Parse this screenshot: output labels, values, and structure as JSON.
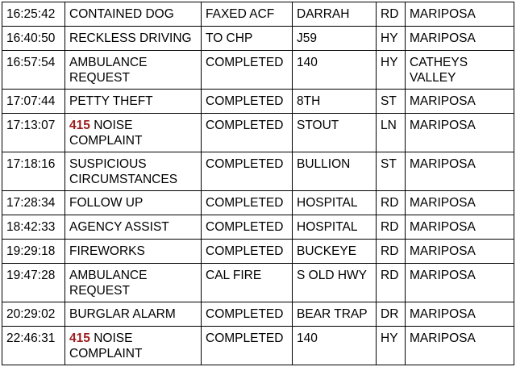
{
  "table": {
    "rows": [
      {
        "time": "16:25:42",
        "incident": "CONTAINED DOG",
        "disposition": "FAXED ACF",
        "street": "DARRAH",
        "suffix": "RD",
        "city": "MARIPOSA"
      },
      {
        "time": "16:40:50",
        "incident": "RECKLESS DRIVING",
        "disposition": "TO CHP",
        "street": "J59",
        "suffix": "HY",
        "city": "MARIPOSA"
      },
      {
        "time": "16:57:54",
        "incident": "AMBULANCE REQUEST",
        "disposition": "COMPLETED",
        "street": "140",
        "suffix": "HY",
        "city": "CATHEYS VALLEY"
      },
      {
        "time": "17:07:44",
        "incident": "PETTY THEFT",
        "disposition": "COMPLETED",
        "street": "8TH",
        "suffix": "ST",
        "city": "MARIPOSA"
      },
      {
        "time": "17:13:07",
        "code": "415",
        "incident": "NOISE COMPLAINT",
        "disposition": "COMPLETED",
        "street": "STOUT",
        "suffix": "LN",
        "city": "MARIPOSA"
      },
      {
        "time": "17:18:16",
        "incident": "SUSPICIOUS CIRCUMSTANCES",
        "disposition": "COMPLETED",
        "street": "BULLION",
        "suffix": "ST",
        "city": "MARIPOSA"
      },
      {
        "time": "17:28:34",
        "incident": "FOLLOW UP",
        "disposition": "COMPLETED",
        "street": "HOSPITAL",
        "suffix": "RD",
        "city": "MARIPOSA"
      },
      {
        "time": "18:42:33",
        "incident": "AGENCY ASSIST",
        "disposition": "COMPLETED",
        "street": "HOSPITAL",
        "suffix": "RD",
        "city": "MARIPOSA"
      },
      {
        "time": "19:29:18",
        "incident": "FIREWORKS",
        "disposition": "COMPLETED",
        "street": "BUCKEYE",
        "suffix": "RD",
        "city": "MARIPOSA"
      },
      {
        "time": "19:47:28",
        "incident": "AMBULANCE REQUEST",
        "disposition": "CAL FIRE",
        "street": "S OLD HWY",
        "suffix": "RD",
        "city": "MARIPOSA"
      },
      {
        "time": "20:29:02",
        "incident": "BURGLAR ALARM",
        "disposition": "COMPLETED",
        "street": "BEAR TRAP",
        "suffix": "DR",
        "city": "MARIPOSA"
      },
      {
        "time": "22:46:31",
        "code": "415",
        "incident": "NOISE COMPLAINT",
        "disposition": "COMPLETED",
        "street": "140",
        "suffix": "HY",
        "city": "MARIPOSA"
      }
    ]
  }
}
